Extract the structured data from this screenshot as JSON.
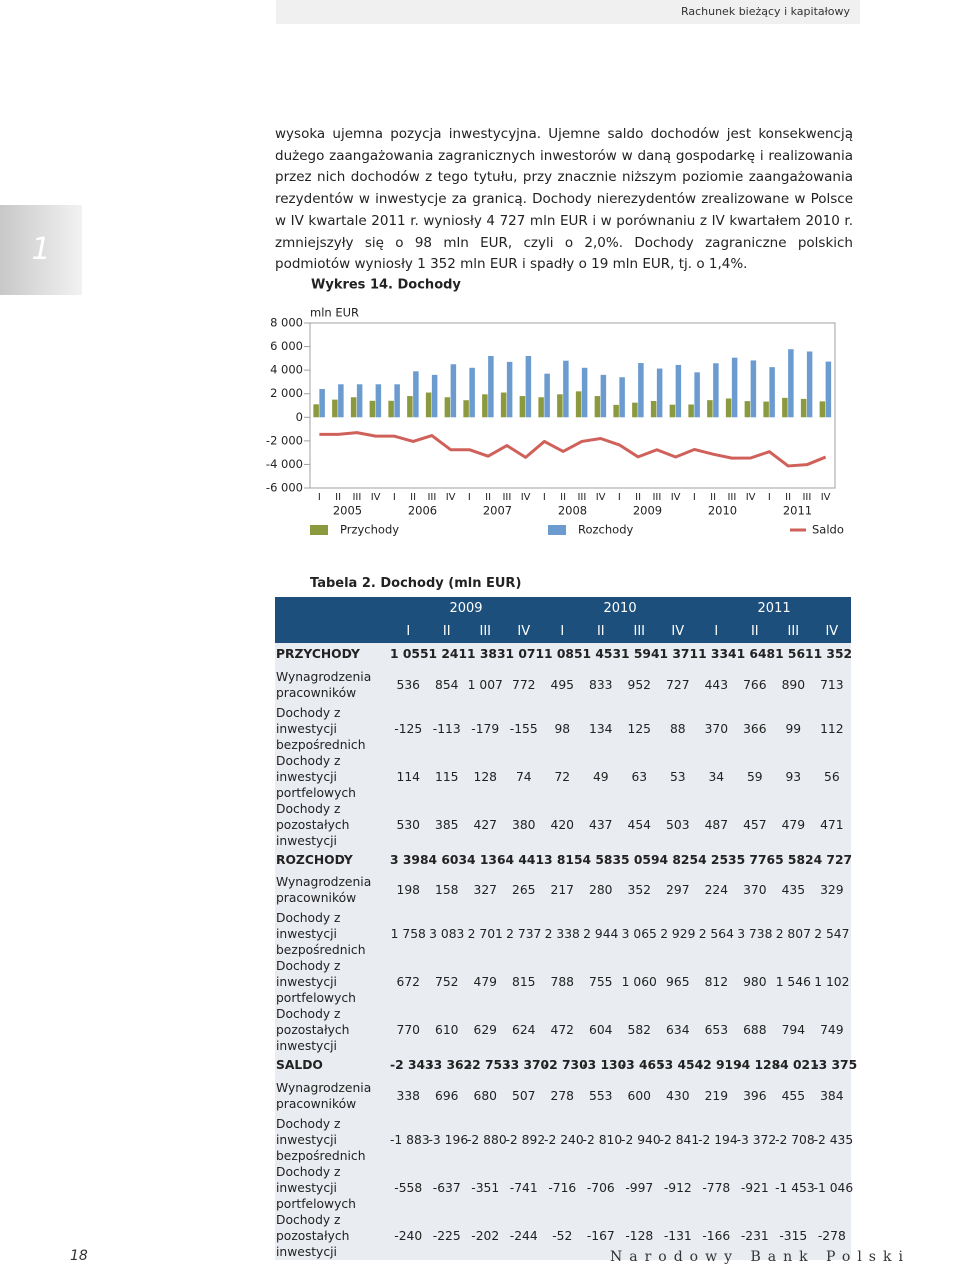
{
  "header": {
    "section": "Rachunek bieżący i kapitałowy"
  },
  "side_tab": "1",
  "paragraph": "wysoka ujemna pozycja inwestycyjna. Ujemne saldo dochodów jest konsekwencją dużego zaangażowania zagranicznych inwestorów w daną gospodarkę i realizowania przez nich dochodów z tego tytułu, przy znacznie niższym poziomie zaangażowania rezydentów w inwestycje za granicą. Dochody nierezydentów zrealizowane w Polsce w IV kwartale 2011 r. wyniosły 4 727 mln EUR i w porównaniu z IV kwartałem 2010 r. zmniejszyły się o 98 mln EUR, czyli o 2,0%. Dochody zagraniczne polskich podmiotów wyniosły 1 352 mln EUR i spadły o 19 mln EUR, tj. o 1,4%.",
  "chart_data": {
    "type": "bar",
    "title": "Wykres 14. Dochody",
    "y_label": "mln EUR",
    "categories": [
      "I",
      "II",
      "III",
      "IV",
      "I",
      "II",
      "III",
      "IV",
      "I",
      "II",
      "III",
      "IV",
      "I",
      "II",
      "III",
      "IV",
      "I",
      "II",
      "III",
      "IV",
      "I",
      "II",
      "III",
      "IV",
      "I",
      "II",
      "III",
      "IV"
    ],
    "groups": [
      "2005",
      "2006",
      "2007",
      "2008",
      "2009",
      "2010",
      "2011"
    ],
    "series": [
      {
        "name": "Przychody",
        "type": "bar",
        "color": "#8c9a3f",
        "values": [
          1100,
          1500,
          1700,
          1400,
          1400,
          1800,
          2100,
          1700,
          1450,
          1950,
          2100,
          1800,
          1700,
          1950,
          2200,
          1800,
          1055,
          1241,
          1383,
          1071,
          1085,
          1453,
          1594,
          1371,
          1334,
          1648,
          1561,
          1352
        ]
      },
      {
        "name": "Rozchody",
        "type": "bar",
        "color": "#6b9bcf",
        "values": [
          2400,
          2800,
          2800,
          2800,
          2800,
          3900,
          3600,
          4500,
          4200,
          5200,
          4700,
          5200,
          3700,
          4800,
          4200,
          3600,
          3398,
          4603,
          4136,
          4441,
          3815,
          4583,
          5059,
          4825,
          4253,
          5776,
          5582,
          4727
        ]
      },
      {
        "name": "Saldo",
        "type": "line",
        "color": "#d0605a",
        "values": [
          -1450,
          -1450,
          -1300,
          -1600,
          -1600,
          -2050,
          -1550,
          -2750,
          -2750,
          -3300,
          -2400,
          -3400,
          -2050,
          -2900,
          -2050,
          -1800,
          -2343,
          -3362,
          -2753,
          -3370,
          -2730,
          -3130,
          -3465,
          -3454,
          -2919,
          -4128,
          -4021,
          -3375
        ]
      }
    ],
    "ylim": [
      -6000,
      8000
    ],
    "yticks": [
      {
        "value": -6000,
        "label": "-6 000"
      },
      {
        "value": -4000,
        "label": "-4 000"
      },
      {
        "value": -2000,
        "label": "-2 000"
      },
      0,
      {
        "value": 2000,
        "label": "2 000"
      },
      {
        "value": 4000,
        "label": "4 000"
      },
      {
        "value": 6000,
        "label": "6 000"
      },
      {
        "value": 8000,
        "label": "8 000"
      }
    ]
  },
  "table": {
    "title": "Tabela 2. Dochody (mln EUR)",
    "years": [
      "2009",
      "2010",
      "2011"
    ],
    "quarters": [
      "I",
      "II",
      "III",
      "IV",
      "I",
      "II",
      "III",
      "IV",
      "I",
      "II",
      "III",
      "IV"
    ],
    "groups": [
      {
        "label": "PRZYCHODY",
        "values": [
          "1 055",
          "1 241",
          "1 383",
          "1 071",
          "1 085",
          "1 453",
          "1 594",
          "1 371",
          "1 334",
          "1 648",
          "1 561",
          "1 352"
        ],
        "rows": [
          {
            "label": "Wynagrodzenia pracowników",
            "values": [
              "536",
              "854",
              "1 007",
              "772",
              "495",
              "833",
              "952",
              "727",
              "443",
              "766",
              "890",
              "713"
            ]
          },
          {
            "label": "Dochody z inwestycji bezpośrednich",
            "values": [
              "-125",
              "-113",
              "-179",
              "-155",
              "98",
              "134",
              "125",
              "88",
              "370",
              "366",
              "99",
              "112"
            ]
          },
          {
            "label": "Dochody z inwestycji portfelowych",
            "values": [
              "114",
              "115",
              "128",
              "74",
              "72",
              "49",
              "63",
              "53",
              "34",
              "59",
              "93",
              "56"
            ]
          },
          {
            "label": "Dochody z pozostałych inwestycji",
            "values": [
              "530",
              "385",
              "427",
              "380",
              "420",
              "437",
              "454",
              "503",
              "487",
              "457",
              "479",
              "471"
            ]
          }
        ]
      },
      {
        "label": "ROZCHODY",
        "values": [
          "3 398",
          "4 603",
          "4 136",
          "4 441",
          "3 815",
          "4 583",
          "5 059",
          "4 825",
          "4 253",
          "5 776",
          "5 582",
          "4 727"
        ],
        "rows": [
          {
            "label": "Wynagrodzenia pracowników",
            "values": [
              "198",
              "158",
              "327",
              "265",
              "217",
              "280",
              "352",
              "297",
              "224",
              "370",
              "435",
              "329"
            ]
          },
          {
            "label": "Dochody z inwestycji bezpośrednich",
            "values": [
              "1 758",
              "3 083",
              "2 701",
              "2 737",
              "2 338",
              "2 944",
              "3 065",
              "2 929",
              "2 564",
              "3 738",
              "2 807",
              "2 547"
            ]
          },
          {
            "label": "Dochody z inwestycji portfelowych",
            "values": [
              "672",
              "752",
              "479",
              "815",
              "788",
              "755",
              "1 060",
              "965",
              "812",
              "980",
              "1 546",
              "1 102"
            ]
          },
          {
            "label": "Dochody z pozostałych inwestycji",
            "values": [
              "770",
              "610",
              "629",
              "624",
              "472",
              "604",
              "582",
              "634",
              "653",
              "688",
              "794",
              "749"
            ]
          }
        ]
      },
      {
        "label": "SALDO",
        "values": [
          "-2 343",
          "-3 362",
          "-2 753",
          "-3 370",
          "-2 730",
          "-3 130",
          "-3 465",
          "-3 454",
          "-2 919",
          "-4 128",
          "-4 021",
          "-3 375"
        ],
        "rows": [
          {
            "label": "Wynagrodzenia pracowników",
            "values": [
              "338",
              "696",
              "680",
              "507",
              "278",
              "553",
              "600",
              "430",
              "219",
              "396",
              "455",
              "384"
            ]
          },
          {
            "label": "Dochody z inwestycji bezpośrednich",
            "values": [
              "-1 883",
              "-3 196",
              "-2 880",
              "-2 892",
              "-2 240",
              "-2 810",
              "-2 940",
              "-2 841",
              "-2 194",
              "-3 372",
              "-2 708",
              "-2 435"
            ]
          },
          {
            "label": "Dochody z inwestycji portfelowych",
            "values": [
              "-558",
              "-637",
              "-351",
              "-741",
              "-716",
              "-706",
              "-997",
              "-912",
              "-778",
              "-921",
              "-1 453",
              "-1 046"
            ]
          },
          {
            "label": "Dochody z pozostałych inwestycji",
            "values": [
              "-240",
              "-225",
              "-202",
              "-244",
              "-52",
              "-167",
              "-128",
              "-131",
              "-166",
              "-231",
              "-315",
              "-278"
            ]
          }
        ]
      }
    ]
  },
  "footer": {
    "page": "18",
    "publisher": "Narodowy Bank Polski"
  }
}
